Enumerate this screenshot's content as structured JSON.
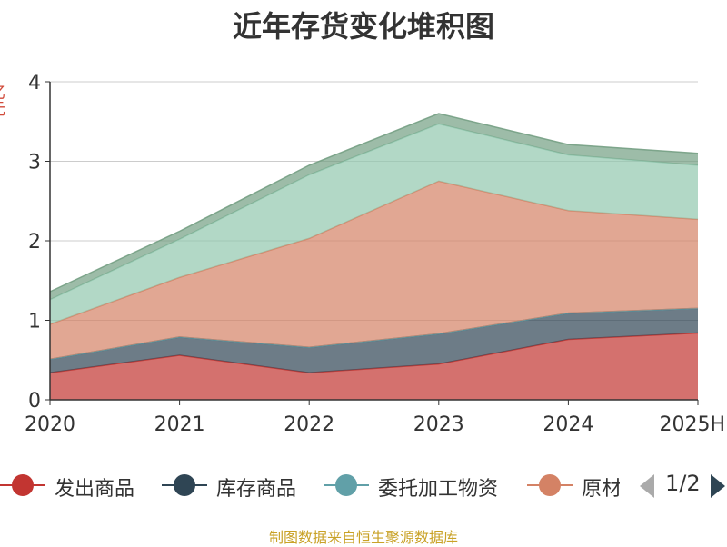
{
  "chart_data": {
    "type": "area",
    "title": "近年存货变化堆积图",
    "ylabel": "亿元",
    "categories": [
      "2020",
      "2021",
      "2022",
      "2023",
      "2024",
      "2025H"
    ],
    "ylim": [
      0,
      4
    ],
    "yticks": [
      "0",
      "1",
      "2",
      "3",
      "4"
    ],
    "grid": true,
    "stacked": true,
    "legend_position": "bottom",
    "series": [
      {
        "name": "发出商品",
        "color": "#c23531",
        "values": [
          0.34,
          0.56,
          0.34,
          0.45,
          0.76,
          0.84
        ]
      },
      {
        "name": "库存商品",
        "color": "#2f4554",
        "values": [
          0.17,
          0.23,
          0.32,
          0.38,
          0.33,
          0.31
        ]
      },
      {
        "name": "委托加工物资",
        "color": "#61a0a8",
        "values": [
          0.0,
          0.0,
          0.0,
          0.0,
          0.0,
          0.0
        ]
      },
      {
        "name": "原材料",
        "color": "#d48265",
        "values": [
          0.44,
          0.75,
          1.37,
          1.92,
          1.29,
          1.12
        ]
      },
      {
        "name": "",
        "color": "#91c7ae",
        "values": [
          0.31,
          0.48,
          0.8,
          0.72,
          0.7,
          0.68
        ]
      },
      {
        "name": "",
        "color": "#749f83",
        "values": [
          0.1,
          0.1,
          0.12,
          0.13,
          0.13,
          0.15
        ]
      }
    ]
  },
  "legend": {
    "items": [
      "发出商品",
      "库存商品",
      "委托加工物资",
      "原材"
    ],
    "page_indicator": "1/2"
  },
  "source_note": "制图数据来自恒生聚源数据库"
}
